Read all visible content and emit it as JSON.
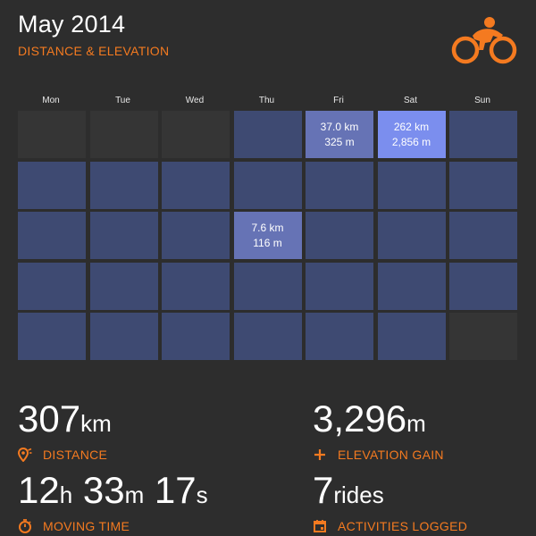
{
  "header": {
    "title": "May 2014",
    "subtitle": "DISTANCE & ELEVATION",
    "logo_icon": "cyclist-icon",
    "accent_color": "#f47a20"
  },
  "calendar": {
    "weekdays": [
      "Mon",
      "Tue",
      "Wed",
      "Thu",
      "Fri",
      "Sat",
      "Sun"
    ],
    "weeks": [
      [
        {
          "state": "empty",
          "km": "",
          "m": ""
        },
        {
          "state": "empty",
          "km": "",
          "m": ""
        },
        {
          "state": "empty",
          "km": "",
          "m": ""
        },
        {
          "state": "none",
          "km": "",
          "m": ""
        },
        {
          "state": "mid",
          "km": "37.0 km",
          "m": "325 m"
        },
        {
          "state": "high",
          "km": "262 km",
          "m": "2,856 m"
        },
        {
          "state": "none",
          "km": "",
          "m": ""
        }
      ],
      [
        {
          "state": "none",
          "km": "",
          "m": ""
        },
        {
          "state": "none",
          "km": "",
          "m": ""
        },
        {
          "state": "none",
          "km": "",
          "m": ""
        },
        {
          "state": "none",
          "km": "",
          "m": ""
        },
        {
          "state": "none",
          "km": "",
          "m": ""
        },
        {
          "state": "none",
          "km": "",
          "m": ""
        },
        {
          "state": "none",
          "km": "",
          "m": ""
        }
      ],
      [
        {
          "state": "none",
          "km": "",
          "m": ""
        },
        {
          "state": "none",
          "km": "",
          "m": ""
        },
        {
          "state": "none",
          "km": "",
          "m": ""
        },
        {
          "state": "mid",
          "km": "7.6 km",
          "m": "116 m"
        },
        {
          "state": "none",
          "km": "",
          "m": ""
        },
        {
          "state": "none",
          "km": "",
          "m": ""
        },
        {
          "state": "none",
          "km": "",
          "m": ""
        }
      ],
      [
        {
          "state": "none",
          "km": "",
          "m": ""
        },
        {
          "state": "none",
          "km": "",
          "m": ""
        },
        {
          "state": "none",
          "km": "",
          "m": ""
        },
        {
          "state": "none",
          "km": "",
          "m": ""
        },
        {
          "state": "none",
          "km": "",
          "m": ""
        },
        {
          "state": "none",
          "km": "",
          "m": ""
        },
        {
          "state": "none",
          "km": "",
          "m": ""
        }
      ],
      [
        {
          "state": "none",
          "km": "",
          "m": ""
        },
        {
          "state": "none",
          "km": "",
          "m": ""
        },
        {
          "state": "none",
          "km": "",
          "m": ""
        },
        {
          "state": "none",
          "km": "",
          "m": ""
        },
        {
          "state": "none",
          "km": "",
          "m": ""
        },
        {
          "state": "none",
          "km": "",
          "m": ""
        },
        {
          "state": "empty",
          "km": "",
          "m": ""
        }
      ]
    ],
    "colors": {
      "empty": "#353535",
      "none": "#3e4a72",
      "mid": "#6673b5",
      "high": "#7b8eee"
    }
  },
  "stats": {
    "distance": {
      "value": "307",
      "unit": "km",
      "label": "DISTANCE",
      "icon": "map-pin-icon"
    },
    "elevation": {
      "value": "3,296",
      "unit": "m",
      "label": "ELEVATION GAIN",
      "icon": "plus-icon"
    },
    "moving_time": {
      "hours": "12",
      "h_unit": "h",
      "minutes": "33",
      "m_unit": "m",
      "seconds": "17",
      "s_unit": "s",
      "label": "MOVING TIME",
      "icon": "stopwatch-icon"
    },
    "activities": {
      "value": "7",
      "unit": "rides",
      "label": "ACTIVITIES LOGGED",
      "icon": "calendar-icon"
    }
  }
}
